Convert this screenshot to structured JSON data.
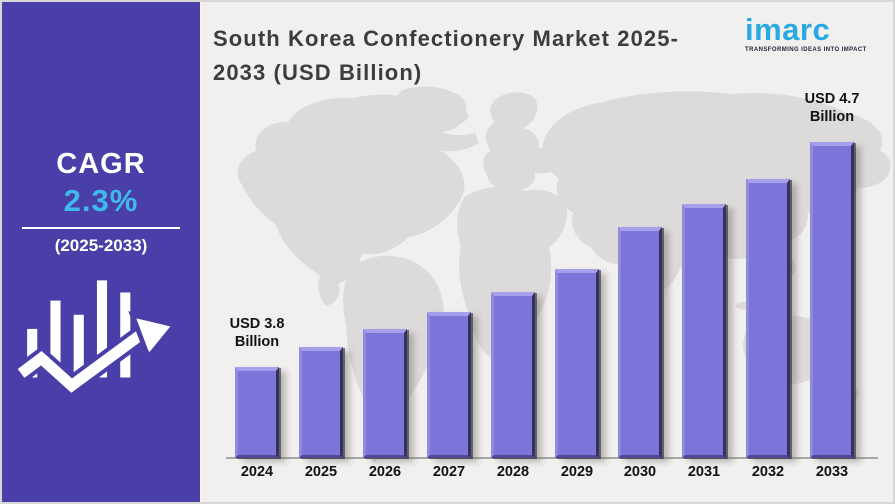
{
  "sidebar": {
    "cagr_label": "CAGR",
    "cagr_value": "2.3%",
    "period": "(2025-2033)",
    "icon": "growth-bars-trend-arrow-icon",
    "bg_color": "#4a3fa8",
    "value_color": "#3fb9ea"
  },
  "header": {
    "title": "South Korea Confectionery Market 2025-2033 (USD Billion)"
  },
  "logo": {
    "brand": "imarc",
    "tagline": "TRANSFORMING IDEAS INTO IMPACT",
    "brand_color": "#29a9e1"
  },
  "chart_data": {
    "type": "bar",
    "title": "South Korea Confectionery Market 2025-2033 (USD Billion)",
    "unit": "USD Billion",
    "categories": [
      "2024",
      "2025",
      "2026",
      "2027",
      "2028",
      "2029",
      "2030",
      "2031",
      "2032",
      "2033"
    ],
    "values": [
      3.8,
      3.88,
      3.95,
      4.02,
      4.1,
      4.19,
      4.36,
      4.45,
      4.55,
      4.7
    ],
    "value_labels": [
      {
        "category": "2024",
        "text": "USD 3.8 Billion"
      },
      {
        "category": "2033",
        "text": "USD 4.7 Billion"
      }
    ],
    "labeled_points_note": "only 2024 and 2033 carry printed labels; intermediate values estimated from bar heights",
    "ylim": [
      3.435,
      4.9
    ],
    "grid": false,
    "legend": false,
    "bar_color": "#7c75d9",
    "background": "world-map-silhouette",
    "background_color": "#dcdbd9"
  }
}
